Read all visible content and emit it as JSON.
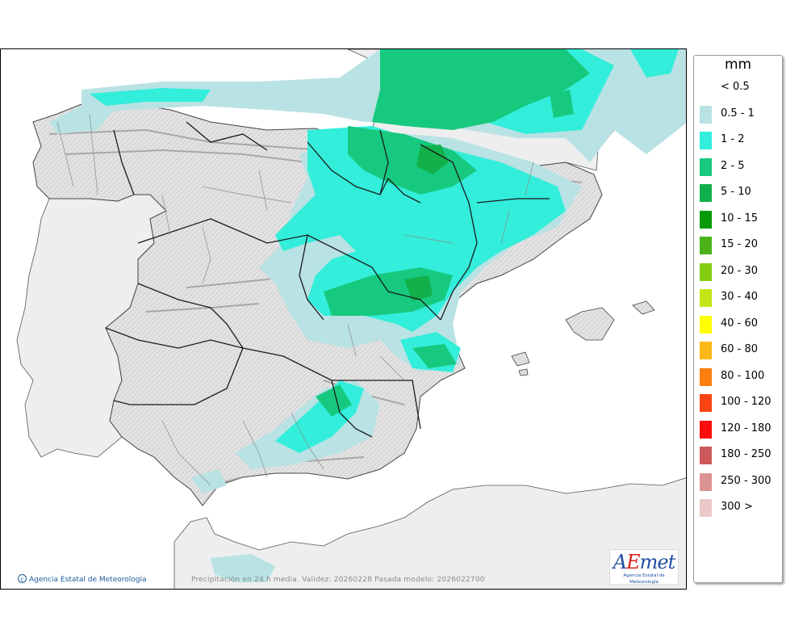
{
  "legend": {
    "unit": "mm",
    "items": [
      {
        "label": "< 0.5",
        "color": "#ffffff"
      },
      {
        "label": "0.5 - 1",
        "color": "#b9e2e4"
      },
      {
        "label": "1 - 2",
        "color": "#32eeda"
      },
      {
        "label": "2 - 5",
        "color": "#17c97f"
      },
      {
        "label": "5 - 10",
        "color": "#12b04a"
      },
      {
        "label": "10 - 15",
        "color": "#099a09"
      },
      {
        "label": "15 - 20",
        "color": "#4cb21a"
      },
      {
        "label": "20 - 30",
        "color": "#84cc10"
      },
      {
        "label": "30 - 40",
        "color": "#c4e515"
      },
      {
        "label": "40 - 60",
        "color": "#ffff00"
      },
      {
        "label": "60 - 80",
        "color": "#fbb817"
      },
      {
        "label": "80 - 100",
        "color": "#fb7f10"
      },
      {
        "label": "100 - 120",
        "color": "#fb4411"
      },
      {
        "label": "120 - 180",
        "color": "#fb0d0d"
      },
      {
        "label": "180 - 250",
        "color": "#cd5a5a"
      },
      {
        "label": "250 - 300",
        "color": "#dd9393"
      },
      {
        "label": "300 >",
        "color": "#ecc9c9"
      }
    ]
  },
  "footer": {
    "copyright": "Agencia Estatal de Meteorología",
    "caption": "Precipitación en 24 h media. Validez: 20260228 Pasada modelo: 2026022700"
  },
  "logo": {
    "mark_a": "A",
    "mark_e": "E",
    "mark_rest": "met",
    "subtitle": "Agencia Estatal de Meteorología"
  },
  "colors": {
    "land": "#e6e6e6",
    "foreign_land": "#eeeeee",
    "border": "#1a1a1a",
    "region_border": "#8c8c8c"
  }
}
